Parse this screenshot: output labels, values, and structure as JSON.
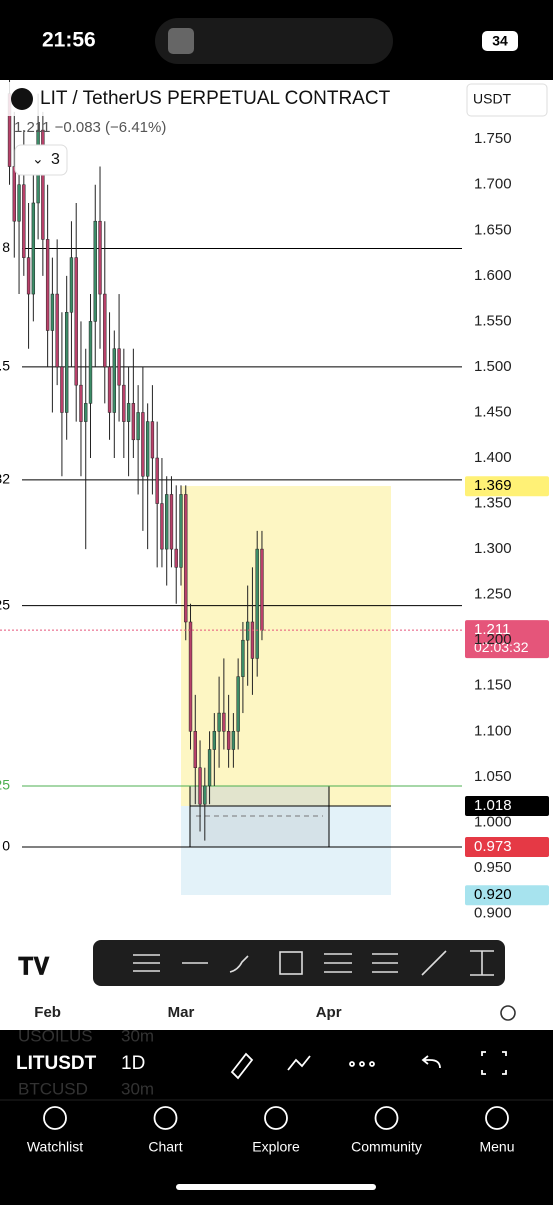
{
  "status_bar": {
    "time": "21:56",
    "battery": "34"
  },
  "header": {
    "title": "LIT / TetherUS PERPETUAL CONTRACT",
    "quote": "1.211 −0.083 (−6.41%)",
    "indicators": "3",
    "currency": "USDT"
  },
  "chart_data": {
    "type": "candlestick",
    "up_color": "#3d8c68",
    "down_color": "#b8416a",
    "xlim": [
      -2,
      95
    ],
    "xticks": [
      {
        "value": 8,
        "label": "Feb"
      },
      {
        "value": 36,
        "label": "Mar"
      },
      {
        "value": 67,
        "label": "Apr"
      }
    ],
    "ylim": [
      0.805,
      1.815
    ],
    "yticks": [
      {
        "value": 0.9,
        "label": "0.900"
      },
      {
        "value": 0.95,
        "label": "0.950"
      },
      {
        "value": 1.0,
        "label": "1.000"
      },
      {
        "value": 1.05,
        "label": "1.050"
      },
      {
        "value": 1.1,
        "label": "1.100"
      },
      {
        "value": 1.15,
        "label": "1.150"
      },
      {
        "value": 1.2,
        "label": "1.200"
      },
      {
        "value": 1.25,
        "label": "1.250"
      },
      {
        "value": 1.3,
        "label": "1.300"
      },
      {
        "value": 1.35,
        "label": "1.350"
      },
      {
        "value": 1.4,
        "label": "1.400"
      },
      {
        "value": 1.45,
        "label": "1.450"
      },
      {
        "value": 1.5,
        "label": "1.500"
      },
      {
        "value": 1.55,
        "label": "1.550"
      },
      {
        "value": 1.6,
        "label": "1.600"
      },
      {
        "value": 1.65,
        "label": "1.650"
      },
      {
        "value": 1.7,
        "label": "1.700"
      },
      {
        "value": 1.75,
        "label": "1.750"
      }
    ],
    "candles": [
      [
        1.8,
        1.88,
        1.7,
        1.72
      ],
      [
        1.72,
        1.78,
        1.62,
        1.66
      ],
      [
        1.66,
        1.74,
        1.58,
        1.7
      ],
      [
        1.7,
        1.76,
        1.6,
        1.62
      ],
      [
        1.62,
        1.68,
        1.52,
        1.58
      ],
      [
        1.58,
        1.72,
        1.55,
        1.68
      ],
      [
        1.68,
        1.8,
        1.64,
        1.76
      ],
      [
        1.76,
        1.78,
        1.6,
        1.64
      ],
      [
        1.64,
        1.7,
        1.5,
        1.54
      ],
      [
        1.54,
        1.62,
        1.45,
        1.58
      ],
      [
        1.58,
        1.64,
        1.48,
        1.5
      ],
      [
        1.5,
        1.56,
        1.38,
        1.45
      ],
      [
        1.45,
        1.6,
        1.42,
        1.56
      ],
      [
        1.56,
        1.66,
        1.5,
        1.62
      ],
      [
        1.62,
        1.68,
        1.44,
        1.48
      ],
      [
        1.48,
        1.55,
        1.38,
        1.44
      ],
      [
        1.44,
        1.52,
        1.3,
        1.46
      ],
      [
        1.46,
        1.58,
        1.4,
        1.55
      ],
      [
        1.55,
        1.7,
        1.5,
        1.66
      ],
      [
        1.66,
        1.72,
        1.52,
        1.58
      ],
      [
        1.58,
        1.66,
        1.46,
        1.5
      ],
      [
        1.5,
        1.56,
        1.42,
        1.45
      ],
      [
        1.45,
        1.54,
        1.4,
        1.52
      ],
      [
        1.52,
        1.58,
        1.44,
        1.48
      ],
      [
        1.48,
        1.52,
        1.4,
        1.44
      ],
      [
        1.44,
        1.5,
        1.38,
        1.46
      ],
      [
        1.46,
        1.52,
        1.4,
        1.42
      ],
      [
        1.42,
        1.48,
        1.36,
        1.45
      ],
      [
        1.45,
        1.5,
        1.32,
        1.38
      ],
      [
        1.38,
        1.46,
        1.3,
        1.44
      ],
      [
        1.44,
        1.48,
        1.36,
        1.4
      ],
      [
        1.4,
        1.44,
        1.28,
        1.35
      ],
      [
        1.35,
        1.4,
        1.28,
        1.3
      ],
      [
        1.3,
        1.38,
        1.26,
        1.36
      ],
      [
        1.36,
        1.38,
        1.28,
        1.3
      ],
      [
        1.3,
        1.37,
        1.24,
        1.28
      ],
      [
        1.28,
        1.37,
        1.26,
        1.36
      ],
      [
        1.36,
        1.37,
        1.2,
        1.22
      ],
      [
        1.22,
        1.24,
        1.08,
        1.1
      ],
      [
        1.1,
        1.14,
        1.02,
        1.06
      ],
      [
        1.06,
        1.09,
        0.99,
        1.02
      ],
      [
        1.02,
        1.06,
        0.98,
        1.04
      ],
      [
        1.04,
        1.1,
        1.02,
        1.08
      ],
      [
        1.08,
        1.12,
        1.04,
        1.1
      ],
      [
        1.1,
        1.16,
        1.06,
        1.12
      ],
      [
        1.12,
        1.18,
        1.08,
        1.1
      ],
      [
        1.1,
        1.14,
        1.06,
        1.08
      ],
      [
        1.08,
        1.12,
        1.06,
        1.1
      ],
      [
        1.1,
        1.18,
        1.08,
        1.16
      ],
      [
        1.16,
        1.22,
        1.12,
        1.2
      ],
      [
        1.2,
        1.26,
        1.15,
        1.22
      ],
      [
        1.22,
        1.28,
        1.14,
        1.18
      ],
      [
        1.18,
        1.32,
        1.16,
        1.3
      ],
      [
        1.3,
        1.32,
        1.2,
        1.211
      ]
    ],
    "levels": [
      {
        "value": 1.63,
        "label": "8",
        "color": "#000000"
      },
      {
        "value": 1.5,
        "label": ".5",
        "color": "#000000"
      },
      {
        "value": 1.376,
        "label": "32",
        "color": "#000000"
      },
      {
        "value": 1.238,
        "label": "25",
        "color": "#000000"
      },
      {
        "value": 1.04,
        "label": "25",
        "color": "#4caf50"
      },
      {
        "value": 0.973,
        "label": "0",
        "color": "#000000"
      }
    ],
    "price_labels": [
      {
        "value": 1.369,
        "label": "1.369",
        "bg": "#fff176",
        "fg": "#000000"
      },
      {
        "value": 1.211,
        "label": "1.211",
        "sub": "02:03:32",
        "bg": "#e5557a",
        "fg": "#ffffff"
      },
      {
        "value": 1.018,
        "label": "1.018",
        "bg": "#000000",
        "fg": "#ffffff"
      },
      {
        "value": 0.973,
        "label": "0.973",
        "bg": "#e53945",
        "fg": "#ffffff"
      },
      {
        "value": 0.92,
        "label": "0.920",
        "bg": "#a7e3ee",
        "fg": "#000000"
      }
    ]
  },
  "footer": {
    "symbol": "LITUSDT",
    "interval": "1D",
    "watchlist": [
      {
        "symbol": "USOILUS",
        "interval": "30m"
      },
      {
        "symbol": "BTCUSD",
        "interval": "30m"
      }
    ]
  },
  "tabs": [
    "Watchlist",
    "Chart",
    "Explore",
    "Community",
    "Menu"
  ]
}
